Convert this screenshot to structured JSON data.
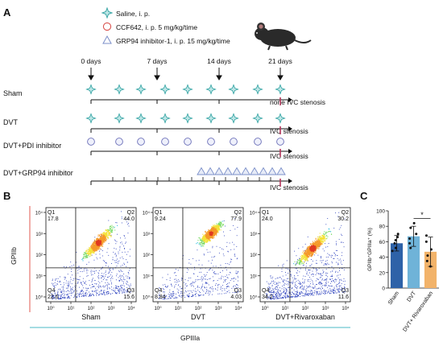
{
  "panels": {
    "a": "A",
    "b": "B",
    "c": "C"
  },
  "legend": [
    {
      "icon": "star-icon",
      "text": "Saline, i. p.",
      "color": "#3aa6a6"
    },
    {
      "icon": "circle-icon",
      "text": "CCF642, i. p. 5 mg/kg/time",
      "color": "#d9534f"
    },
    {
      "icon": "triangle-icon",
      "text": "GRP94 inhibitor-1, i. p. 15 mg/kg/time",
      "color": "#7b8fc9"
    }
  ],
  "timepoints": [
    "0 days",
    "7 days",
    "14 days",
    "21 days"
  ],
  "groups": [
    {
      "label": "Sham",
      "marker": "star",
      "outcome": "none IVC stenosis"
    },
    {
      "label": "DVT",
      "marker": "star",
      "outcome": "IVC stenosis"
    },
    {
      "label": "DVT+PDI inhibitor",
      "marker": "circle",
      "outcome": "IVC stenosis"
    },
    {
      "label": "DVT+GRP94 inhibitor",
      "marker": "triangle",
      "outcome": "IVC stenosis"
    }
  ],
  "flow": {
    "y_axis": "GPIIb",
    "x_axis": "GPIIIa",
    "plots": [
      {
        "name": "Sham",
        "q1": "Q1",
        "q1v": "17.8",
        "q2": "Q2",
        "q2v": "44.0",
        "q3": "Q3",
        "q3v": "15.6",
        "q4": "Q4",
        "q4v": "22.6"
      },
      {
        "name": "DVT",
        "q1": "Q1",
        "q1v": "9.24",
        "q2": "Q2",
        "q2v": "77.9",
        "q3": "Q3",
        "q3v": "4.03",
        "q4": "Q4",
        "q4v": "8.84"
      },
      {
        "name": "DVT+Rivaroxaban",
        "q1": "Q1",
        "q1v": "24.0",
        "q2": "Q2",
        "q2v": "30.2",
        "q3": "Q3",
        "q3v": "11.6",
        "q4": "Q4",
        "q4v": "34.2"
      }
    ],
    "y_ticks": [
      "10⁴",
      "10³",
      "10²",
      "10¹",
      "10⁰"
    ],
    "x_ticks": [
      "10⁰",
      "10¹",
      "10²",
      "10³",
      "10⁴"
    ]
  },
  "chart_data": {
    "type": "bar",
    "title": "",
    "ylabel": "GPIIb⁺GPIIIa⁺ (%)",
    "categories": [
      "Sham",
      "DVT",
      "DVT+ Rivaroxaban"
    ],
    "values": [
      58,
      67,
      47
    ],
    "errors": [
      10,
      13,
      19
    ],
    "colors": [
      "#2e62a8",
      "#6fb3d8",
      "#f2b36a"
    ],
    "points": [
      [
        48,
        52,
        58,
        62,
        66,
        70
      ],
      [
        52,
        58,
        64,
        70,
        78,
        84
      ],
      [
        28,
        35,
        42,
        50,
        60,
        68
      ]
    ],
    "ylim": [
      0,
      100
    ],
    "yticks": [
      0,
      20,
      40,
      60,
      80,
      100
    ],
    "significance": "*"
  }
}
